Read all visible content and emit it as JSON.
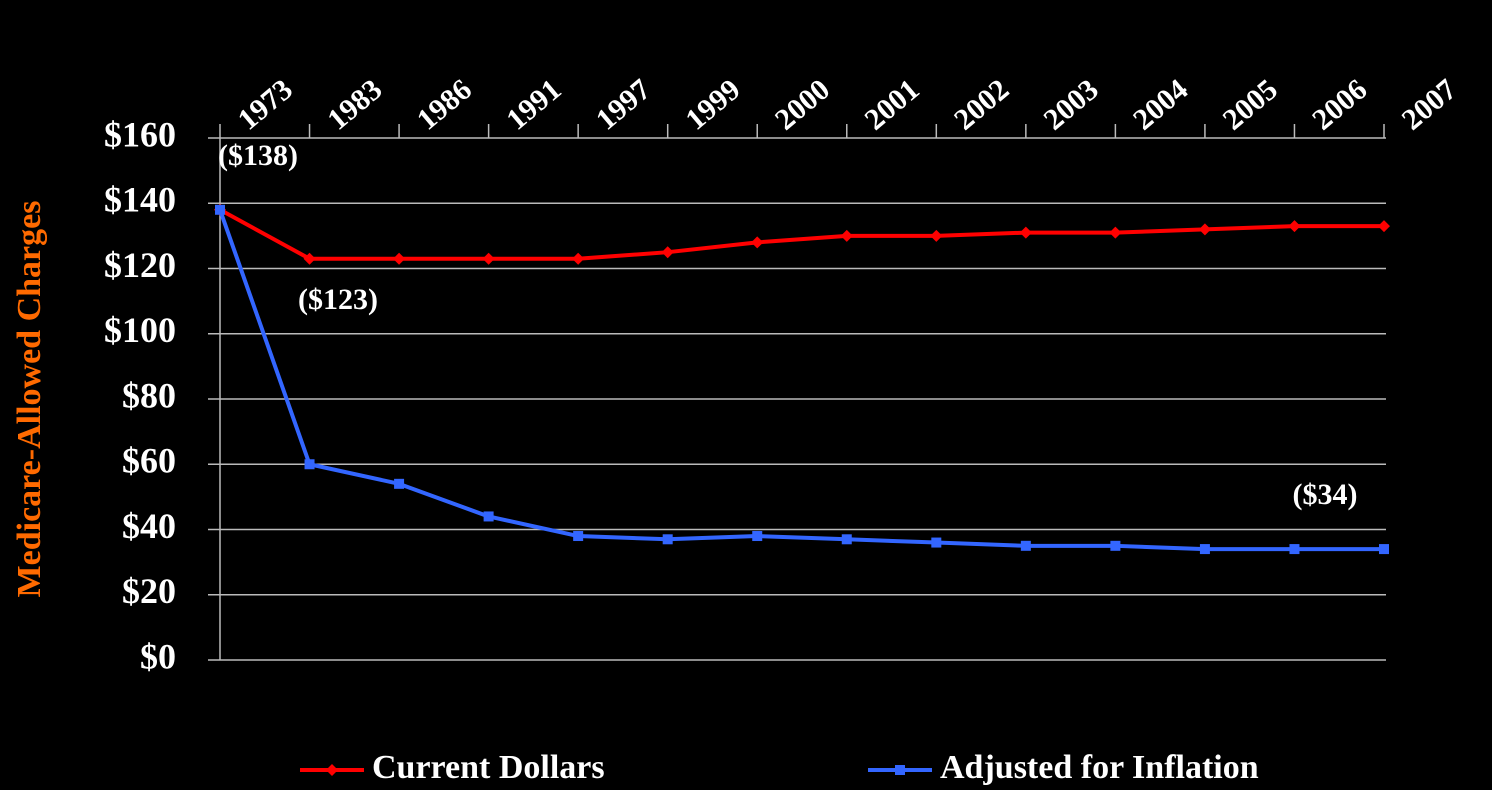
{
  "chart_data": {
    "type": "line",
    "y_label": "Medicare-Allowed Charges",
    "categories": [
      "1973",
      "1983",
      "1986",
      "1991",
      "1997",
      "1999",
      "2000",
      "2001",
      "2002",
      "2003",
      "2004",
      "2005",
      "2006",
      "2007"
    ],
    "series": [
      {
        "name": "Current Dollars",
        "color": "#ff0000",
        "marker": "diamond",
        "values": [
          138,
          123,
          123,
          123,
          123,
          125,
          128,
          130,
          130,
          131,
          131,
          132,
          133,
          133
        ]
      },
      {
        "name": "Adjusted for Inflation",
        "color": "#3366ff",
        "marker": "square",
        "values": [
          138,
          60,
          54,
          44,
          38,
          37,
          38,
          37,
          36,
          35,
          35,
          34,
          34,
          34
        ]
      }
    ],
    "ylim": [
      0,
      160
    ],
    "yticks": [
      {
        "value": 0,
        "label": "$0"
      },
      {
        "value": 20,
        "label": "$20"
      },
      {
        "value": 40,
        "label": "$40"
      },
      {
        "value": 60,
        "label": "$60"
      },
      {
        "value": 80,
        "label": "$80"
      },
      {
        "value": 100,
        "label": "$100"
      },
      {
        "value": 120,
        "label": "$120"
      },
      {
        "value": 140,
        "label": "$140"
      },
      {
        "value": 160,
        "label": "$160"
      }
    ],
    "grid": true,
    "legend": "bottom",
    "annotations": [
      "($138)",
      "($123)",
      "($34)"
    ]
  }
}
